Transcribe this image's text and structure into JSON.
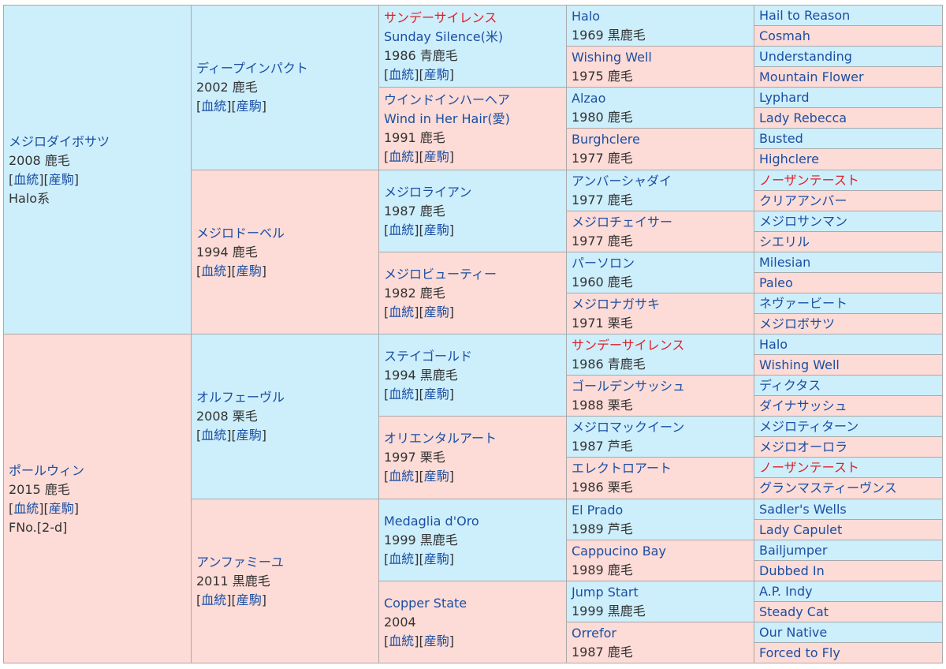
{
  "link_labels": {
    "blood": "血統",
    "produce": "産駒"
  },
  "colors": {
    "male_bg": "#cdeefb",
    "female_bg": "#fddbd6",
    "name": "#1a4fa3",
    "highlight": "#e0202a",
    "border": "#aaaaaa"
  },
  "pedigree": [
    {
      "id": "s",
      "gen": 1,
      "sex": "male",
      "name": "メジロダイボサツ",
      "year_color": "2008 鹿毛",
      "links": true,
      "extra": "Halo系"
    },
    {
      "id": "ss",
      "gen": 2,
      "sex": "male",
      "name": "ディープインパクト",
      "year_color": "2002 鹿毛",
      "links": true
    },
    {
      "id": "sss",
      "gen": 3,
      "sex": "male",
      "name": "サンデーサイレンス",
      "highlight": true,
      "alt_name": "Sunday Silence(米)",
      "year_color": "1986 青鹿毛",
      "links": true
    },
    {
      "id": "ssss",
      "gen": 4,
      "sex": "male",
      "name": "Halo",
      "year_color": "1969 黒鹿毛"
    },
    {
      "id": "sssss",
      "gen": 5,
      "sex": "male",
      "name": "Hail to Reason"
    },
    {
      "id": "ssssd",
      "gen": 5,
      "sex": "female",
      "name": "Cosmah"
    },
    {
      "id": "sssd",
      "gen": 4,
      "sex": "female",
      "name": "Wishing Well",
      "year_color": "1975 鹿毛"
    },
    {
      "id": "sssds",
      "gen": 5,
      "sex": "male",
      "name": "Understanding"
    },
    {
      "id": "sssdd",
      "gen": 5,
      "sex": "female",
      "name": "Mountain Flower"
    },
    {
      "id": "ssd",
      "gen": 3,
      "sex": "female",
      "name": "ウインドインハーヘア",
      "alt_name": "Wind in Her Hair(愛)",
      "year_color": "1991 鹿毛",
      "links": true
    },
    {
      "id": "ssds",
      "gen": 4,
      "sex": "male",
      "name": "Alzao",
      "year_color": "1980 鹿毛"
    },
    {
      "id": "ssdss",
      "gen": 5,
      "sex": "male",
      "name": "Lyphard"
    },
    {
      "id": "ssdsd",
      "gen": 5,
      "sex": "female",
      "name": "Lady Rebecca"
    },
    {
      "id": "ssdd",
      "gen": 4,
      "sex": "female",
      "name": "Burghclere",
      "year_color": "1977 鹿毛"
    },
    {
      "id": "ssdds",
      "gen": 5,
      "sex": "male",
      "name": "Busted"
    },
    {
      "id": "ssddd",
      "gen": 5,
      "sex": "female",
      "name": "Highclere"
    },
    {
      "id": "sd",
      "gen": 2,
      "sex": "female",
      "name": "メジロドーベル",
      "year_color": "1994 鹿毛",
      "links": true
    },
    {
      "id": "sds",
      "gen": 3,
      "sex": "male",
      "name": "メジロライアン",
      "year_color": "1987 鹿毛",
      "links": true
    },
    {
      "id": "sdss",
      "gen": 4,
      "sex": "male",
      "name": "アンバーシャダイ",
      "year_color": "1977 鹿毛"
    },
    {
      "id": "sdsss",
      "gen": 5,
      "sex": "male",
      "name": "ノーザンテースト",
      "highlight": true
    },
    {
      "id": "sdssd",
      "gen": 5,
      "sex": "female",
      "name": "クリアアンバー"
    },
    {
      "id": "sdsd",
      "gen": 4,
      "sex": "female",
      "name": "メジロチェイサー",
      "year_color": "1977 鹿毛"
    },
    {
      "id": "sdsds",
      "gen": 5,
      "sex": "male",
      "name": "メジロサンマン"
    },
    {
      "id": "sdsdd",
      "gen": 5,
      "sex": "female",
      "name": "シエリル"
    },
    {
      "id": "sdd",
      "gen": 3,
      "sex": "female",
      "name": "メジロビューティー",
      "year_color": "1982 鹿毛",
      "links": true
    },
    {
      "id": "sdds",
      "gen": 4,
      "sex": "male",
      "name": "パーソロン",
      "year_color": "1960 鹿毛"
    },
    {
      "id": "sddss",
      "gen": 5,
      "sex": "male",
      "name": "Milesian"
    },
    {
      "id": "sddsd",
      "gen": 5,
      "sex": "female",
      "name": "Paleo"
    },
    {
      "id": "sddd",
      "gen": 4,
      "sex": "female",
      "name": "メジロナガサキ",
      "year_color": "1971 栗毛"
    },
    {
      "id": "sddds",
      "gen": 5,
      "sex": "male",
      "name": "ネヴァービート"
    },
    {
      "id": "sdddd",
      "gen": 5,
      "sex": "female",
      "name": "メジロボサツ"
    },
    {
      "id": "d",
      "gen": 1,
      "sex": "female",
      "name": "ポールウィン",
      "year_color": "2015 鹿毛",
      "links": true,
      "extra": "FNo.[2-d]"
    },
    {
      "id": "ds",
      "gen": 2,
      "sex": "male",
      "name": "オルフェーヴル",
      "year_color": "2008 栗毛",
      "links": true
    },
    {
      "id": "dss",
      "gen": 3,
      "sex": "male",
      "name": "ステイゴールド",
      "year_color": "1994 黒鹿毛",
      "links": true
    },
    {
      "id": "dsss",
      "gen": 4,
      "sex": "male",
      "name": "サンデーサイレンス",
      "highlight": true,
      "year_color": "1986 青鹿毛"
    },
    {
      "id": "dssss",
      "gen": 5,
      "sex": "male",
      "name": "Halo"
    },
    {
      "id": "dsssd",
      "gen": 5,
      "sex": "female",
      "name": "Wishing Well"
    },
    {
      "id": "dssd",
      "gen": 4,
      "sex": "female",
      "name": "ゴールデンサッシュ",
      "year_color": "1988 栗毛"
    },
    {
      "id": "dssds",
      "gen": 5,
      "sex": "male",
      "name": "ディクタス"
    },
    {
      "id": "dssdd",
      "gen": 5,
      "sex": "female",
      "name": "ダイナサッシュ"
    },
    {
      "id": "dsd",
      "gen": 3,
      "sex": "female",
      "name": "オリエンタルアート",
      "year_color": "1997 栗毛",
      "links": true
    },
    {
      "id": "dsds",
      "gen": 4,
      "sex": "male",
      "name": "メジロマックイーン",
      "year_color": "1987 芦毛"
    },
    {
      "id": "dsdss",
      "gen": 5,
      "sex": "male",
      "name": "メジロティターン"
    },
    {
      "id": "dsdsd",
      "gen": 5,
      "sex": "female",
      "name": "メジロオーロラ"
    },
    {
      "id": "dsdd",
      "gen": 4,
      "sex": "female",
      "name": "エレクトロアート",
      "year_color": "1986 栗毛"
    },
    {
      "id": "dsdds",
      "gen": 5,
      "sex": "male",
      "name": "ノーザンテースト",
      "highlight": true
    },
    {
      "id": "dsddd",
      "gen": 5,
      "sex": "female",
      "name": "グランマスティーヴンス"
    },
    {
      "id": "dd",
      "gen": 2,
      "sex": "female",
      "name": "アンファミーユ",
      "year_color": "2011 黒鹿毛",
      "links": true
    },
    {
      "id": "dds",
      "gen": 3,
      "sex": "male",
      "name": "Medaglia d'Oro",
      "year_color": "1999 黒鹿毛",
      "links": true
    },
    {
      "id": "ddss",
      "gen": 4,
      "sex": "male",
      "name": "El Prado",
      "year_color": "1989 芦毛"
    },
    {
      "id": "ddsss",
      "gen": 5,
      "sex": "male",
      "name": "Sadler's Wells"
    },
    {
      "id": "ddssd",
      "gen": 5,
      "sex": "female",
      "name": "Lady Capulet"
    },
    {
      "id": "ddsd",
      "gen": 4,
      "sex": "female",
      "name": "Cappucino Bay",
      "year_color": "1989 鹿毛"
    },
    {
      "id": "ddsds",
      "gen": 5,
      "sex": "male",
      "name": "Bailjumper"
    },
    {
      "id": "ddsdd",
      "gen": 5,
      "sex": "female",
      "name": "Dubbed In"
    },
    {
      "id": "ddd",
      "gen": 3,
      "sex": "female",
      "name": "Copper State",
      "year_color": "2004",
      "links": true
    },
    {
      "id": "ddds",
      "gen": 4,
      "sex": "male",
      "name": "Jump Start",
      "year_color": "1999 黒鹿毛"
    },
    {
      "id": "dddss",
      "gen": 5,
      "sex": "male",
      "name": "A.P. Indy"
    },
    {
      "id": "dddsd",
      "gen": 5,
      "sex": "female",
      "name": "Steady Cat"
    },
    {
      "id": "dddd",
      "gen": 4,
      "sex": "female",
      "name": "Orrefor",
      "year_color": "1987 鹿毛"
    },
    {
      "id": "dddds",
      "gen": 5,
      "sex": "male",
      "name": "Our Native"
    },
    {
      "id": "ddddd",
      "gen": 5,
      "sex": "female",
      "name": "Forced to Fly"
    }
  ]
}
